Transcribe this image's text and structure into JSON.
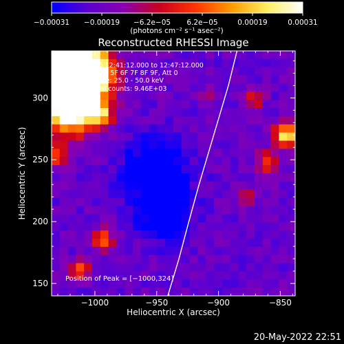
{
  "chart_data": {
    "type": "heatmap",
    "title": "Reconstructed RHESSI Image",
    "xlabel": "Heliocentric X (arcsec)",
    "ylabel": "Heliocentric Y (arcsec)",
    "xlim": [
      -1035,
      -838
    ],
    "ylim": [
      140,
      338
    ],
    "x_ticks": [
      {
        "value": -1000,
        "label": "−1000"
      },
      {
        "value": -950,
        "label": "−950"
      },
      {
        "value": -900,
        "label": "−900"
      },
      {
        "value": -850,
        "label": "−850"
      }
    ],
    "y_ticks": [
      {
        "value": 150,
        "label": "150"
      },
      {
        "value": 200,
        "label": "200"
      },
      {
        "value": 250,
        "label": "250"
      },
      {
        "value": 300,
        "label": "300"
      }
    ],
    "colorbar": {
      "min": -0.00031,
      "max": 0.00031,
      "tick_labels": [
        "−0.00031",
        "−0.00019",
        "−6.2e−05",
        "6.2e−05",
        "0.00019",
        "0.00031"
      ],
      "unit_label": "(photons cm⁻² s⁻¹ asec⁻²)",
      "colors": [
        "#0000ff",
        "#5b00d0",
        "#8a00b0",
        "#c80020",
        "#ff3300",
        "#ff9900",
        "#ffee60",
        "#ffffff"
      ]
    },
    "annotations": [
      "4-May-2015 12:41:12.000 to 12:47:12.000",
      "Detectors: 3F 5F 6F 7F 8F 9F, Att 0",
      "Energy Range: 25.0 - 50.0 keV",
      "Clean    Total counts: 9.46E+03"
    ],
    "peak_label": "Position of Peak = [−1000,324]",
    "limb_curve": {
      "x": [
        -885,
        -892,
        -900,
        -908,
        -916,
        -924,
        -932,
        -941
      ],
      "y": [
        338,
        310,
        283,
        256,
        229,
        200,
        170,
        140
      ]
    },
    "hotspots": [
      {
        "x": -1030,
        "y": 330,
        "sigma": 18,
        "amp": 1.2
      },
      {
        "x": -1012,
        "y": 310,
        "sigma": 16,
        "amp": 0.95
      },
      {
        "x": -1020,
        "y": 290,
        "sigma": 14,
        "amp": 0.75
      },
      {
        "x": -1000,
        "y": 324,
        "sigma": 10,
        "amp": 0.55
      },
      {
        "x": -995,
        "y": 285,
        "sigma": 6,
        "amp": 0.45
      },
      {
        "x": -1030,
        "y": 253,
        "sigma": 6,
        "amp": 0.45
      },
      {
        "x": -993,
        "y": 185,
        "sigma": 6,
        "amp": 0.5
      },
      {
        "x": -1012,
        "y": 160,
        "sigma": 6,
        "amp": 0.4
      },
      {
        "x": -845,
        "y": 270,
        "sigma": 7,
        "amp": 0.7
      },
      {
        "x": -860,
        "y": 248,
        "sigma": 6,
        "amp": 0.4
      },
      {
        "x": -872,
        "y": 300,
        "sigma": 6,
        "amp": 0.35
      },
      {
        "x": -876,
        "y": 220,
        "sigma": 5,
        "amp": 0.3
      },
      {
        "x": -910,
        "y": 300,
        "sigma": 5,
        "amp": 0.2
      }
    ],
    "coldspots": [
      {
        "x": -950,
        "y": 240,
        "sigma": 18,
        "amp": 0.35
      },
      {
        "x": -945,
        "y": 205,
        "sigma": 14,
        "amp": 0.3
      }
    ]
  },
  "footer_timestamp": "20-May-2022 22:51"
}
